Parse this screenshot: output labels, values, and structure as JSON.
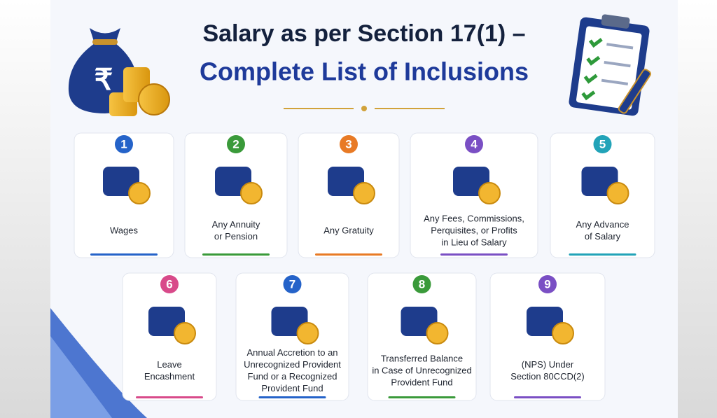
{
  "header": {
    "title_line1": "Salary as per Section 17(1) –",
    "title_line2": "Complete List of Inclusions"
  },
  "items": [
    {
      "number": "1",
      "label": [
        "Wages"
      ]
    },
    {
      "number": "2",
      "label": [
        "Any Annuity",
        "or Pension"
      ]
    },
    {
      "number": "3",
      "label": [
        "Any Gratuity"
      ]
    },
    {
      "number": "4",
      "label": [
        "Any Fees, Commissions,",
        "Perquisites, or Profits",
        "in Lieu of Salary"
      ]
    },
    {
      "number": "5",
      "label": [
        "Any Advance",
        "of Salary"
      ]
    },
    {
      "number": "6",
      "label": [
        "Leave",
        "Encashment"
      ]
    },
    {
      "number": "7",
      "label": [
        "Annual Accretion to an",
        "Unrecognized Provident",
        "Fund or a Recognized",
        "Provident Fund"
      ]
    },
    {
      "number": "8",
      "label": [
        "Transferred Balance",
        "in Case of Unrecognized",
        "Provident Fund"
      ]
    },
    {
      "number": "9",
      "label": [
        "(NPS) Under",
        "Section 80CCD(2)"
      ]
    }
  ]
}
